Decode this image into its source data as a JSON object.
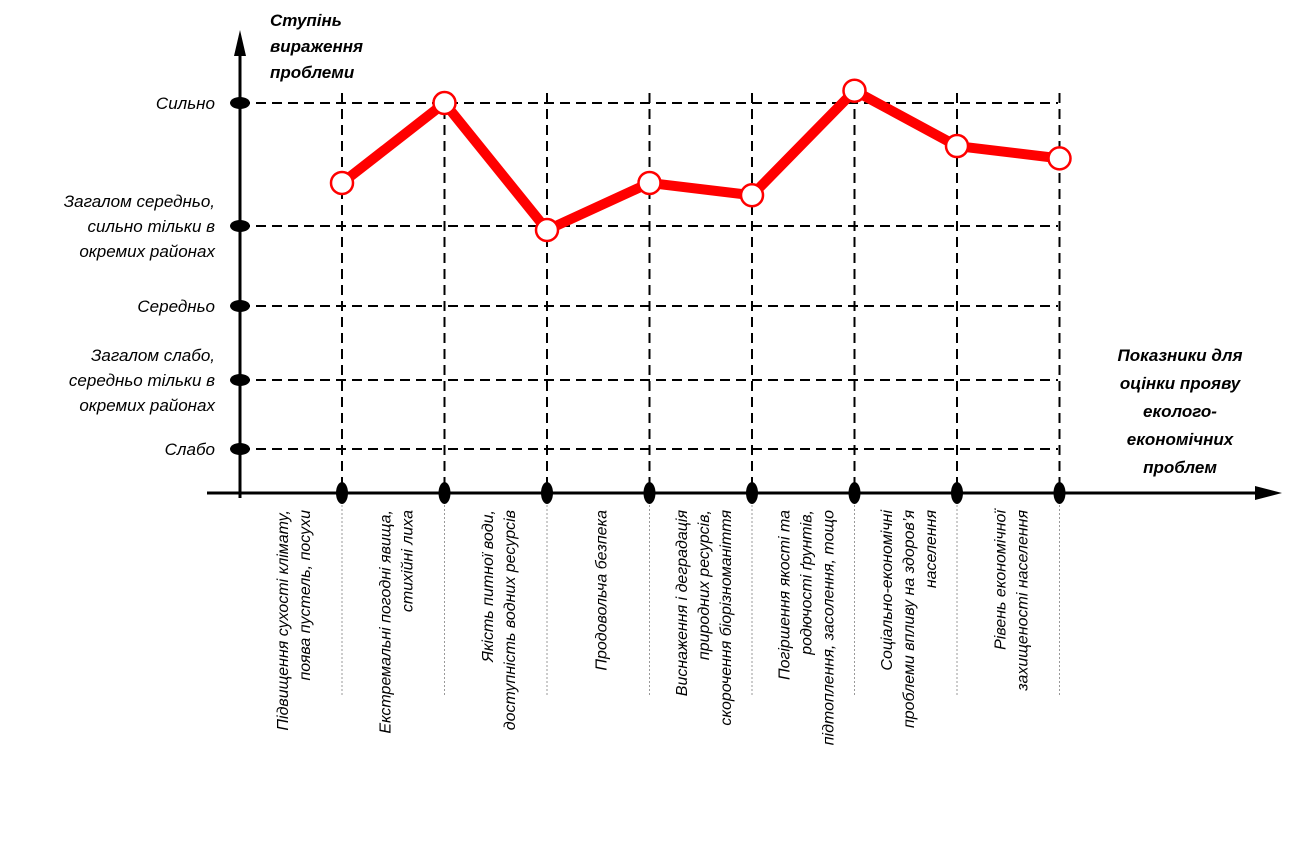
{
  "chart_data": {
    "type": "line",
    "y_axis_title": [
      "Ступінь",
      "вираження",
      "проблеми"
    ],
    "x_axis_title": [
      "Показники для",
      "оцінки прояву",
      "еколого-",
      "економічних",
      "проблем"
    ],
    "levels": [
      {
        "value": 1,
        "label": [
          "Слабо"
        ]
      },
      {
        "value": 2,
        "label": [
          "Загалом слабо,",
          "середньо тільки в",
          "окремих районах"
        ]
      },
      {
        "value": 3,
        "label": [
          "Середньо"
        ]
      },
      {
        "value": 4,
        "label": [
          "Загалом середньо,",
          "сильно тільки в",
          "окремих районах"
        ]
      },
      {
        "value": 5,
        "label": [
          "Сильно"
        ]
      }
    ],
    "categories": [
      [
        "Підвищення сухості клімату,",
        "поява пустель, посухи"
      ],
      [
        "Екстремальні погодні явища,",
        "стихійні лиха"
      ],
      [
        "Якість питної води,",
        "доступність водних ресурсів"
      ],
      [
        "Продовольча безпека"
      ],
      [
        "Виснаження і деградація",
        "природних ресурсів,",
        "скорочення біорізноманіття"
      ],
      [
        "Погіршення якості та",
        "родючості ґрунтів,",
        "підтоплення, засолення, тощо"
      ],
      [
        "Соціально-економічні",
        "проблеми впливу на здоров’я",
        "населення"
      ],
      [
        "Рівень економічної",
        "захищеності населення"
      ]
    ],
    "series": [
      {
        "values": [
          4.35,
          5.0,
          3.95,
          4.35,
          4.25,
          5.1,
          4.65,
          4.55
        ],
        "color": "#ff0000"
      }
    ],
    "ylim": [
      1,
      5
    ],
    "grid": true
  }
}
